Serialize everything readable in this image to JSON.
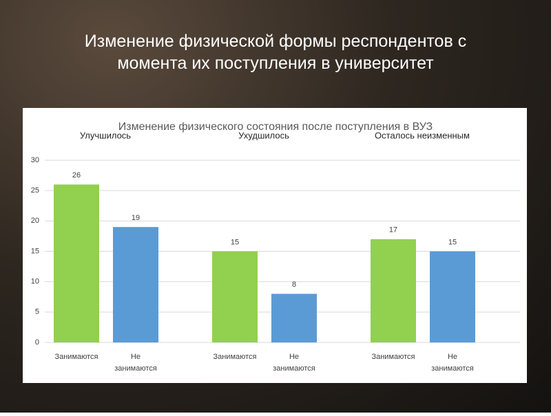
{
  "slide_title": "Изменение физической формы респондентов с момента их поступления в университет",
  "chart_data": {
    "type": "bar",
    "title": "Изменение физического состояния после поступления в ВУЗ",
    "groups": [
      "Улучшилось",
      "Ухудшилось",
      "Осталось неизменным"
    ],
    "categories": [
      "Занимаются",
      "Не занимаются",
      "Занимаются",
      "Не занимаются",
      "Занимаются",
      "Не занимаются"
    ],
    "values": [
      26,
      19,
      15,
      8,
      17,
      15
    ],
    "colors": [
      "#92d050",
      "#5b9bd5",
      "#92d050",
      "#5b9bd5",
      "#92d050",
      "#5b9bd5"
    ],
    "ylim": [
      0,
      30
    ],
    "yticks": [
      0,
      5,
      10,
      15,
      20,
      25,
      30
    ],
    "grid": true
  }
}
